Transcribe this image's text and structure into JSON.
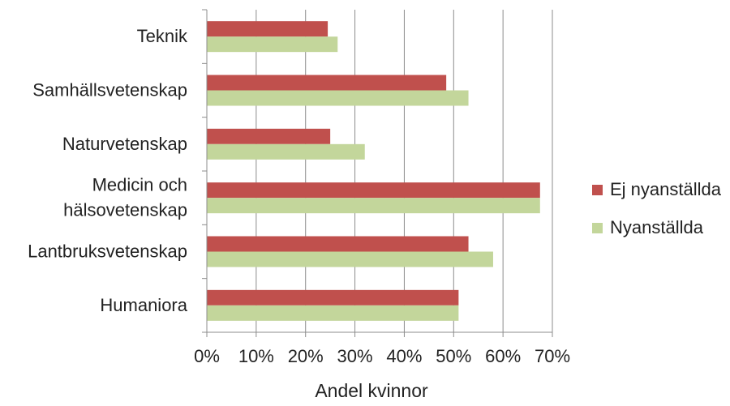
{
  "chart_data": {
    "type": "bar",
    "orientation": "horizontal",
    "categories": [
      "Teknik",
      "Samhällsvetenskap",
      "Naturvetenskap",
      [
        "Medicin och",
        "hälsovetenskap"
      ],
      "Lantbruksvetenskap",
      "Humaniora"
    ],
    "series": [
      {
        "name": "Ej nyanställda",
        "color": "#c0504d",
        "values": [
          24.5,
          48.5,
          25,
          67.5,
          53,
          51
        ]
      },
      {
        "name": "Nyanställda",
        "color": "#c3d69b",
        "values": [
          26.5,
          53,
          32,
          67.5,
          58,
          51
        ]
      }
    ],
    "xlabel": "Andel kvinnor",
    "ylabel": "",
    "xlim": [
      0,
      70
    ],
    "xticks": [
      "0%",
      "10%",
      "20%",
      "30%",
      "40%",
      "50%",
      "60%",
      "70%"
    ],
    "grid": true,
    "legend": "right"
  }
}
